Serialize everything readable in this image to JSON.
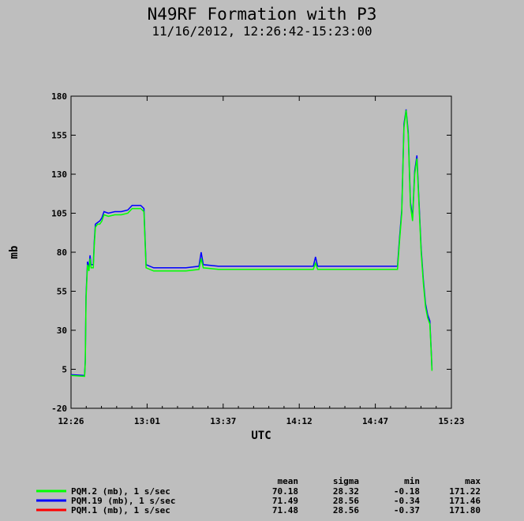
{
  "chart_data": {
    "type": "line",
    "title": "N49RF Formation with P3",
    "subtitle": "11/16/2012, 12:26:42-15:23:00",
    "xlabel": "UTC",
    "ylabel": "mb",
    "xlim": [
      "12:26:42",
      "15:23:00"
    ],
    "ylim": [
      -20,
      180
    ],
    "x_ticks": [
      "12:26",
      "13:01",
      "13:37",
      "14:12",
      "14:47",
      "15:23"
    ],
    "y_ticks": [
      -20,
      5,
      30,
      55,
      80,
      105,
      130,
      155,
      180
    ],
    "grid": false,
    "legend_position": "bottom",
    "stats_headers": [
      "mean",
      "sigma",
      "min",
      "max"
    ],
    "series": [
      {
        "name": "PQM.2 (mb), 1 s/sec",
        "color": "#00ff00",
        "stats": [
          "70.18",
          "28.32",
          "-0.18",
          "171.22"
        ],
        "points": [
          [
            "12:26:42",
            1.0
          ],
          [
            "12:33:00",
            0.5
          ],
          [
            "12:33:20",
            10
          ],
          [
            "12:33:40",
            50
          ],
          [
            "12:34:20",
            72
          ],
          [
            "12:35:00",
            68
          ],
          [
            "12:35:30",
            76
          ],
          [
            "12:36:00",
            70
          ],
          [
            "12:37:00",
            70
          ],
          [
            "12:37:30",
            85
          ],
          [
            "12:38:00",
            96
          ],
          [
            "12:39:00",
            98
          ],
          [
            "12:40:00",
            98
          ],
          [
            "12:41:00",
            100
          ],
          [
            "12:42:00",
            104
          ],
          [
            "12:44:00",
            103
          ],
          [
            "12:47:00",
            104
          ],
          [
            "12:50:00",
            104
          ],
          [
            "12:53:00",
            105
          ],
          [
            "12:55:00",
            108
          ],
          [
            "12:57:00",
            108
          ],
          [
            "12:59:00",
            108
          ],
          [
            "13:00:30",
            106
          ],
          [
            "13:01:00",
            87
          ],
          [
            "13:01:30",
            70
          ],
          [
            "13:05:00",
            68
          ],
          [
            "13:10:00",
            68
          ],
          [
            "13:15:00",
            68
          ],
          [
            "13:20:00",
            68
          ],
          [
            "13:26:00",
            69
          ],
          [
            "13:27:00",
            76
          ],
          [
            "13:28:00",
            70
          ],
          [
            "13:35:00",
            69
          ],
          [
            "13:45:00",
            69
          ],
          [
            "13:55:00",
            69
          ],
          [
            "14:05:00",
            69
          ],
          [
            "14:15:00",
            69
          ],
          [
            "14:19:00",
            69
          ],
          [
            "14:20:00",
            73
          ],
          [
            "14:21:00",
            69
          ],
          [
            "14:30:00",
            69
          ],
          [
            "14:40:00",
            69
          ],
          [
            "14:50:00",
            69
          ],
          [
            "14:58:00",
            69
          ],
          [
            "14:59:00",
            88
          ],
          [
            "15:00:00",
            105
          ],
          [
            "15:01:00",
            160
          ],
          [
            "15:02:00",
            171
          ],
          [
            "15:03:00",
            155
          ],
          [
            "15:04:00",
            110
          ],
          [
            "15:05:00",
            100
          ],
          [
            "15:06:00",
            130
          ],
          [
            "15:07:00",
            140
          ],
          [
            "15:08:00",
            110
          ],
          [
            "15:09:00",
            80
          ],
          [
            "15:10:00",
            60
          ],
          [
            "15:11:00",
            45
          ],
          [
            "15:12:00",
            38
          ],
          [
            "15:13:00",
            34
          ],
          [
            "15:13:40",
            15
          ],
          [
            "15:14:00",
            4
          ]
        ]
      },
      {
        "name": "PQM.19 (mb), 1 s/sec",
        "color": "#0000ff",
        "stats": [
          "71.49",
          "28.56",
          "-0.34",
          "171.46"
        ],
        "points": [
          [
            "12:26:42",
            1.5
          ],
          [
            "12:33:00",
            1.0
          ],
          [
            "12:33:20",
            11
          ],
          [
            "12:33:40",
            52
          ],
          [
            "12:34:20",
            74
          ],
          [
            "12:35:00",
            70
          ],
          [
            "12:35:30",
            78
          ],
          [
            "12:36:00",
            72
          ],
          [
            "12:37:00",
            72
          ],
          [
            "12:37:30",
            87
          ],
          [
            "12:38:00",
            98
          ],
          [
            "12:39:00",
            99
          ],
          [
            "12:40:00",
            100
          ],
          [
            "12:41:00",
            102
          ],
          [
            "12:42:00",
            106
          ],
          [
            "12:44:00",
            105
          ],
          [
            "12:47:00",
            106
          ],
          [
            "12:50:00",
            106
          ],
          [
            "12:53:00",
            107
          ],
          [
            "12:55:00",
            110
          ],
          [
            "12:57:00",
            110
          ],
          [
            "12:59:00",
            110
          ],
          [
            "13:00:30",
            108
          ],
          [
            "13:01:00",
            89
          ],
          [
            "13:01:30",
            72
          ],
          [
            "13:05:00",
            70
          ],
          [
            "13:10:00",
            70
          ],
          [
            "13:15:00",
            70
          ],
          [
            "13:20:00",
            70
          ],
          [
            "13:26:00",
            71
          ],
          [
            "13:27:00",
            80
          ],
          [
            "13:28:00",
            72
          ],
          [
            "13:35:00",
            71
          ],
          [
            "13:45:00",
            71
          ],
          [
            "13:55:00",
            71
          ],
          [
            "14:05:00",
            71
          ],
          [
            "14:15:00",
            71
          ],
          [
            "14:19:00",
            71
          ],
          [
            "14:20:00",
            77
          ],
          [
            "14:21:00",
            71
          ],
          [
            "14:30:00",
            71
          ],
          [
            "14:40:00",
            71
          ],
          [
            "14:50:00",
            71
          ],
          [
            "14:58:00",
            71
          ],
          [
            "14:59:00",
            90
          ],
          [
            "15:00:00",
            107
          ],
          [
            "15:01:00",
            162
          ],
          [
            "15:02:00",
            171.5
          ],
          [
            "15:03:00",
            157
          ],
          [
            "15:04:00",
            112
          ],
          [
            "15:05:00",
            102
          ],
          [
            "15:06:00",
            132
          ],
          [
            "15:07:00",
            142
          ],
          [
            "15:08:00",
            112
          ],
          [
            "15:09:00",
            82
          ],
          [
            "15:10:00",
            62
          ],
          [
            "15:11:00",
            47
          ],
          [
            "15:12:00",
            40
          ],
          [
            "15:13:00",
            36
          ],
          [
            "15:13:40",
            16
          ],
          [
            "15:14:00",
            5
          ]
        ]
      },
      {
        "name": "PQM.1 (mb), 1 s/sec",
        "color": "#ff0000",
        "stats": [
          "71.48",
          "28.56",
          "-0.37",
          "171.80"
        ],
        "points": []
      }
    ]
  }
}
